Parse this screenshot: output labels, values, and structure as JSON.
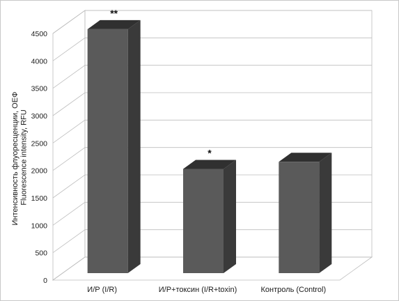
{
  "colors": {
    "bar_front": "#5a5a5a",
    "bar_side": "#3a3a3a",
    "bar_top": "#303030",
    "grid": "#bdbdbd",
    "back_wall": "#ffffff"
  },
  "chart_data": {
    "type": "bar",
    "style": "3d",
    "categories": [
      "И/Р (I/R)",
      "И/Р+токсин (I/R+toxin)",
      "Контроль (Control)"
    ],
    "values": [
      4450,
      1900,
      2030
    ],
    "annotations": [
      "**",
      "*",
      ""
    ],
    "ylabel_line1": "Интенсивность флуоресценции, ОЕФ",
    "ylabel_line2": "Fluorescence intensity, RFU",
    "ylim": [
      0,
      4500
    ],
    "yticks": [
      0,
      500,
      1000,
      1500,
      2000,
      2500,
      3000,
      3500,
      4000,
      4500
    ],
    "ytick_labels": [
      "0",
      "500",
      "1000",
      "1500",
      "2000",
      "2500",
      "3000",
      "3500",
      "4000",
      "4500"
    ],
    "grid": true,
    "legend": "none"
  }
}
